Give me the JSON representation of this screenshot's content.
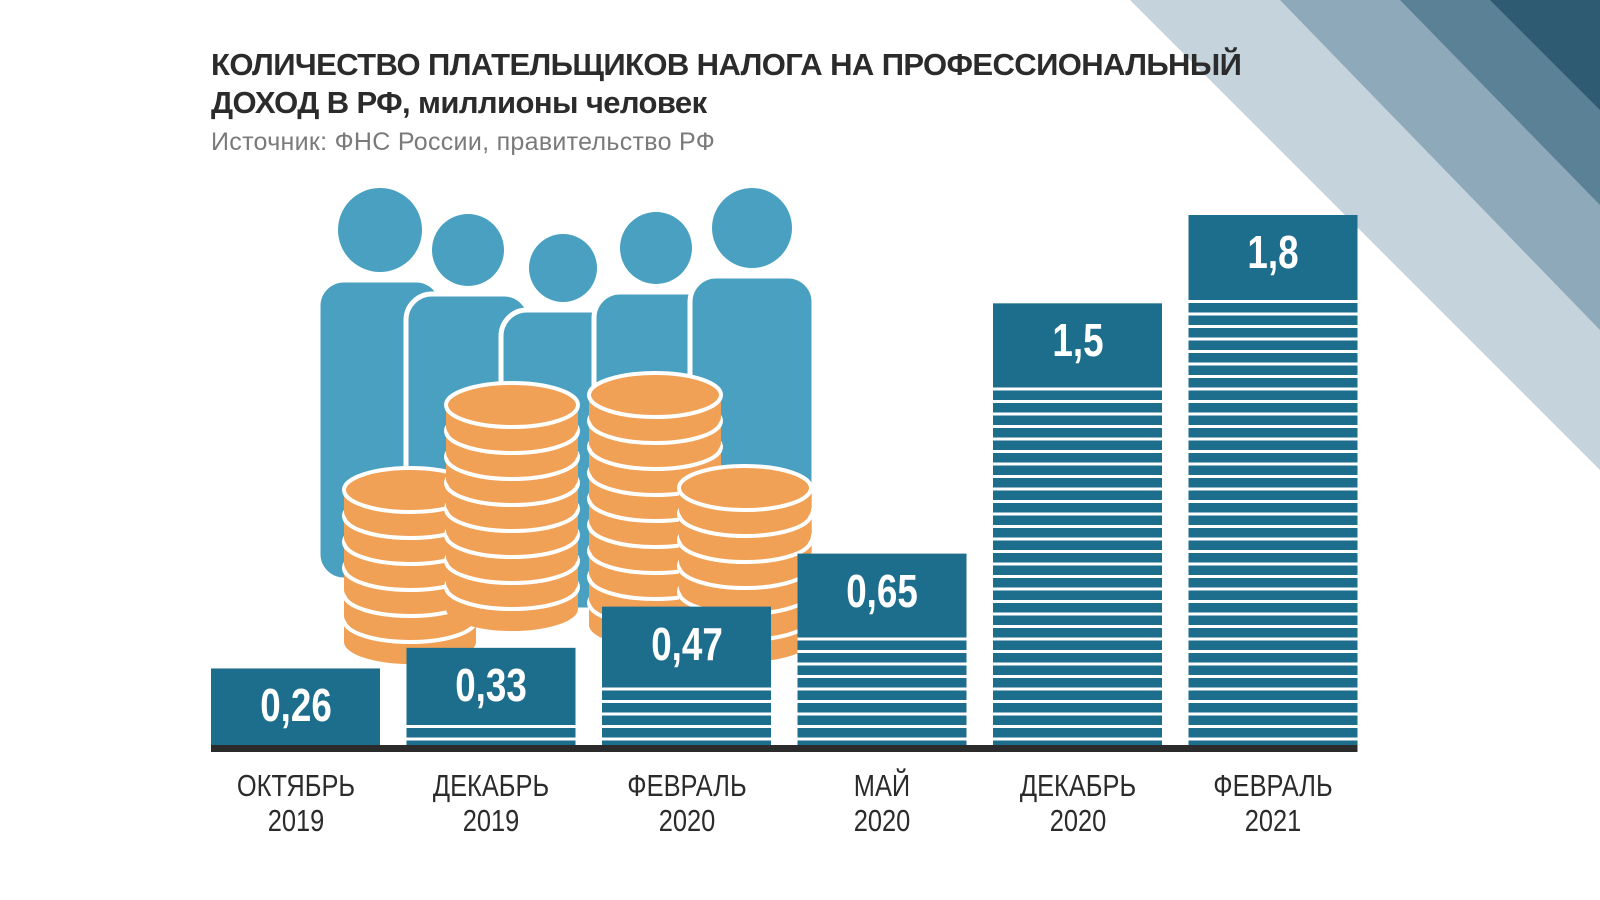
{
  "chart_data": {
    "type": "bar",
    "title": "КОЛИЧЕСТВО ПЛАТЕЛЬЩИКОВ НАЛОГА НА ПРОФЕССИОНАЛЬНЫЙ\nДОХОД В РФ, миллионы человек",
    "subtitle": "Источник: ФНС России, правительство РФ",
    "categories": [
      "ОКТЯБРЬ\n2019",
      "ДЕКАБРЬ\n2019",
      "ФЕВРАЛЬ\n2020",
      "МАЙ\n2020",
      "ДЕКАБРЬ\n2020",
      "ФЕВРАЛЬ\n2021"
    ],
    "values": [
      0.26,
      0.33,
      0.47,
      0.65,
      1.5,
      1.8
    ],
    "value_labels": [
      "0,26",
      "0,33",
      "0,47",
      "0,65",
      "1,5",
      "1,8"
    ],
    "color": "#1d6e8c"
  }
}
